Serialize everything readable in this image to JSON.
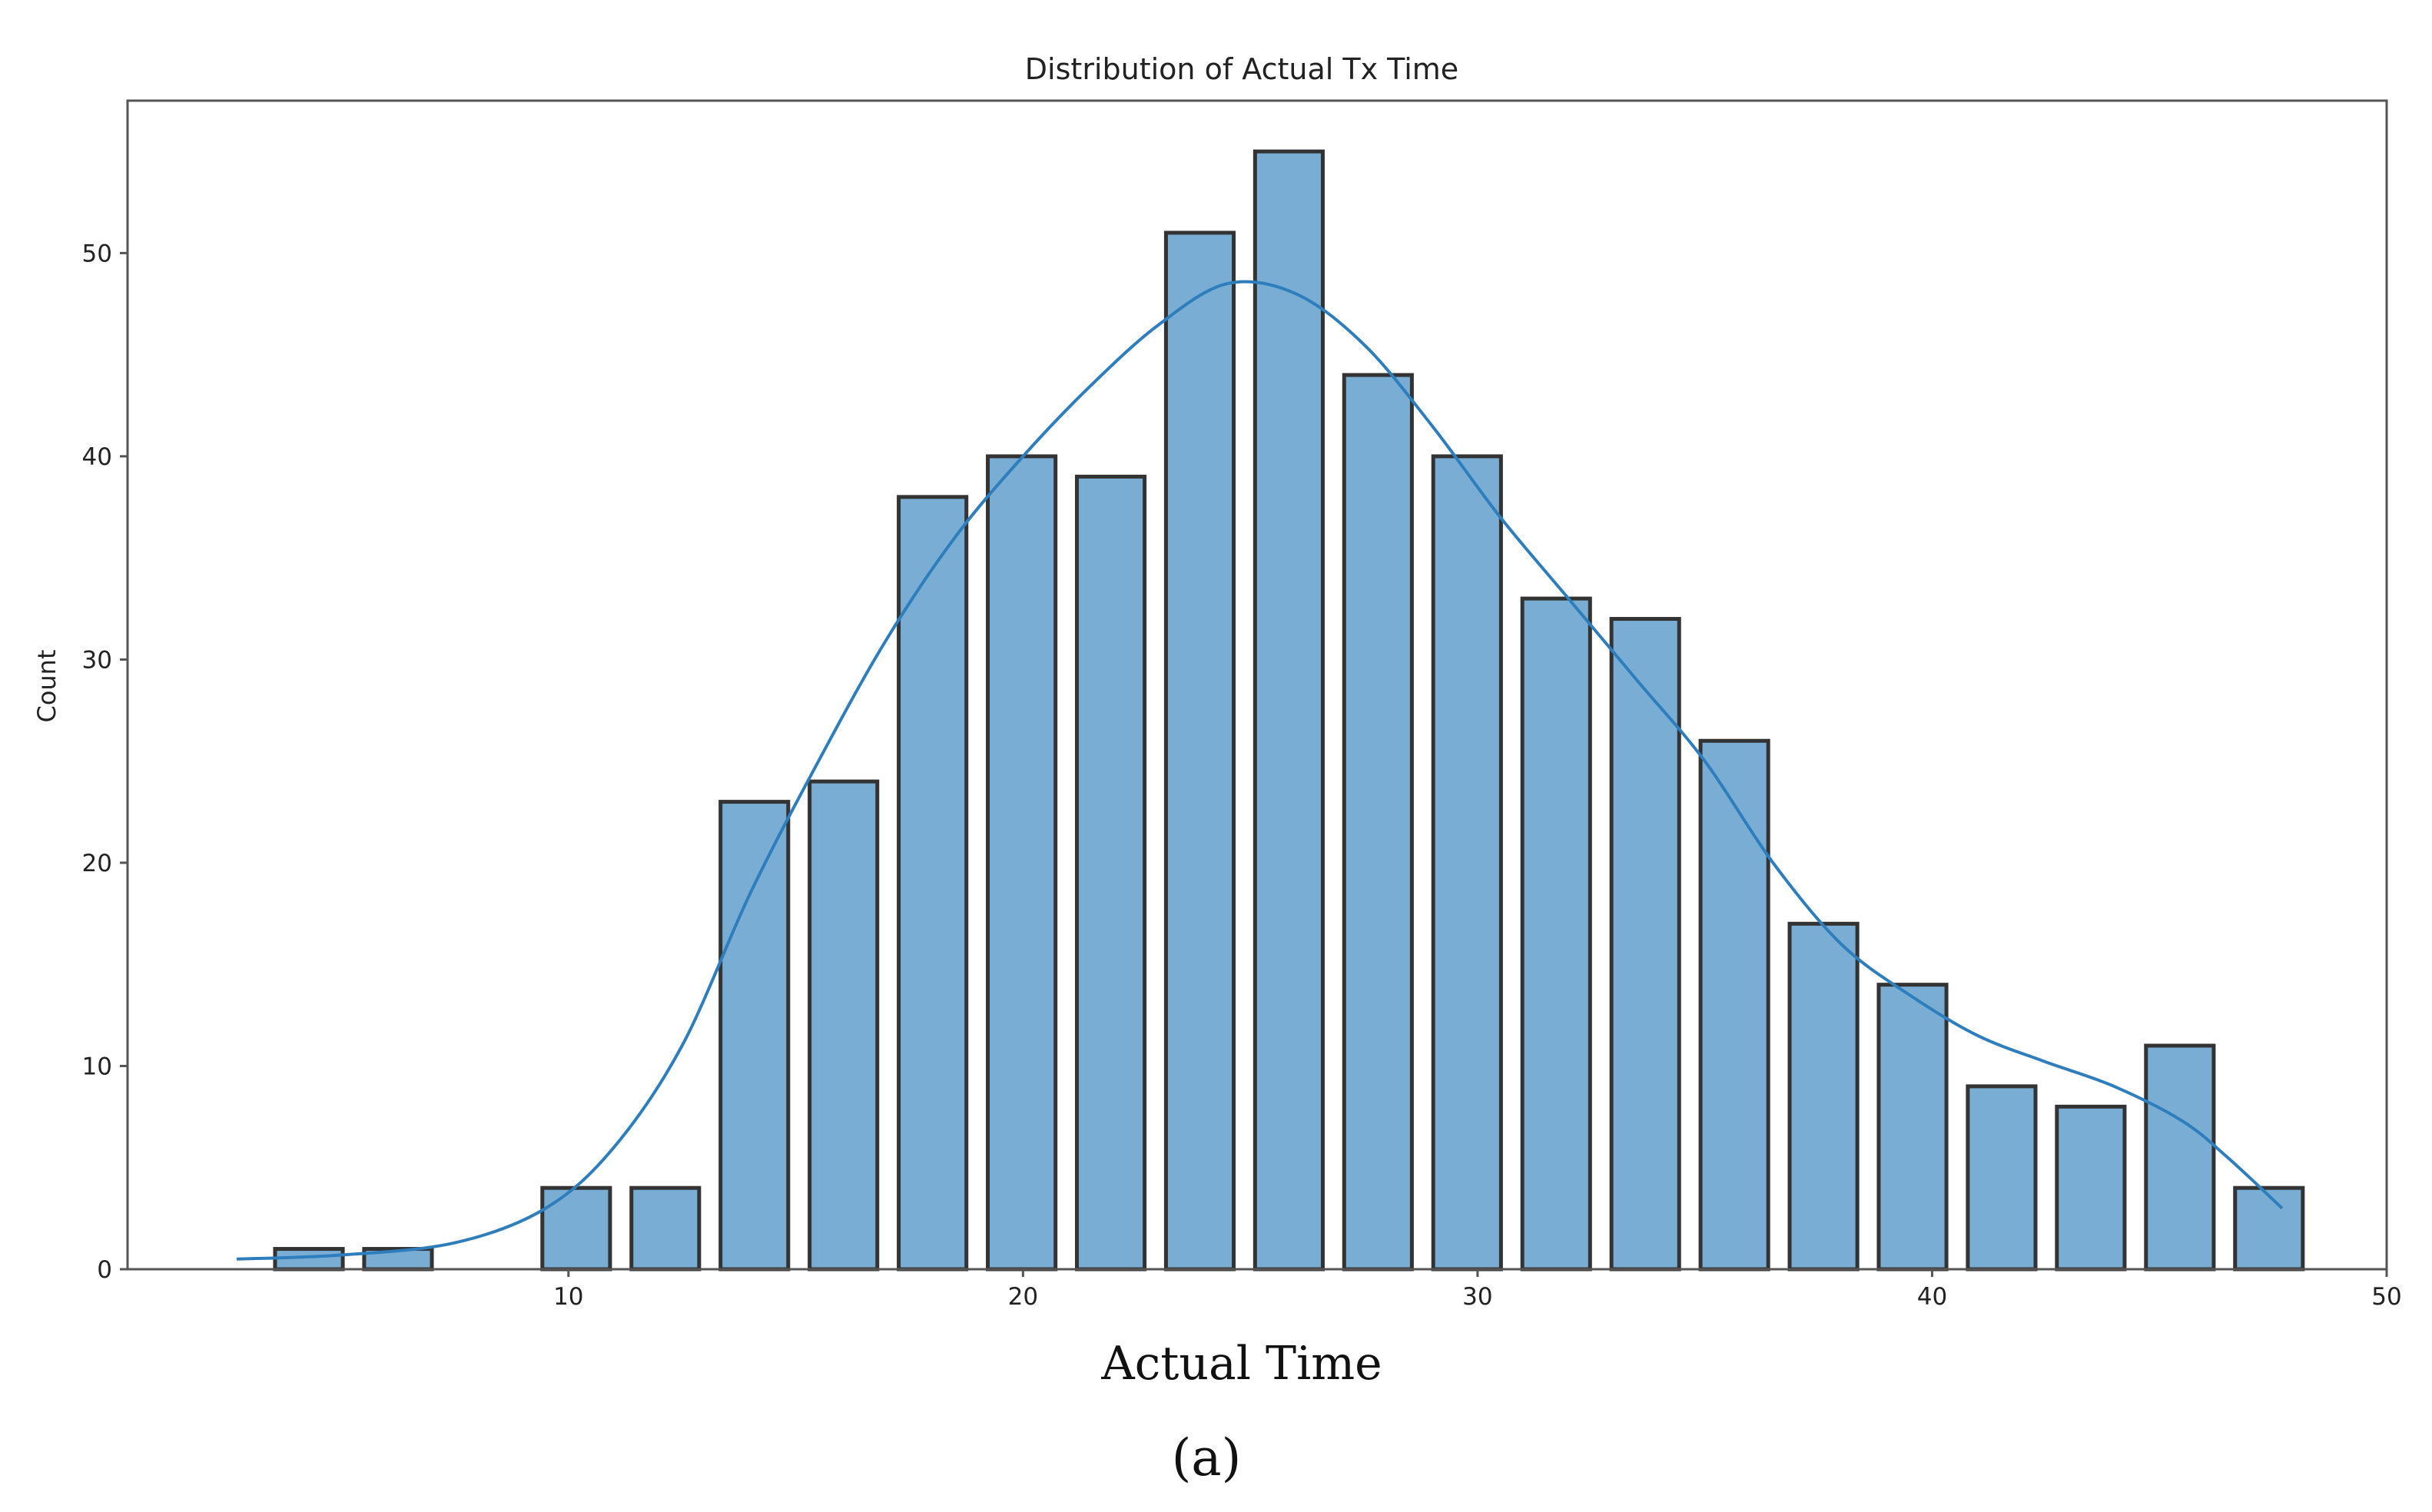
{
  "chart_data": {
    "type": "bar",
    "title": "Distribution of Actual Tx Time",
    "xlabel": "Actual Time",
    "ylabel": "Count",
    "panel_label": "(a)",
    "xlim": [
      0.3,
      50
    ],
    "ylim": [
      0,
      57.5
    ],
    "xticks": [
      10,
      20,
      30,
      40,
      50
    ],
    "yticks": [
      0,
      10,
      20,
      30,
      40,
      50
    ],
    "bin_width": 1.96,
    "bar_color": "#79add3",
    "edge_color": "#333333",
    "kde_color": "#2e7ebd",
    "bars": [
      {
        "x": 4.29,
        "count": 1
      },
      {
        "x": 6.25,
        "count": 1
      },
      {
        "x": 8.21,
        "count": 0
      },
      {
        "x": 10.17,
        "count": 4
      },
      {
        "x": 12.13,
        "count": 4
      },
      {
        "x": 14.09,
        "count": 23
      },
      {
        "x": 16.05,
        "count": 24
      },
      {
        "x": 18.01,
        "count": 38
      },
      {
        "x": 19.97,
        "count": 40
      },
      {
        "x": 21.93,
        "count": 39
      },
      {
        "x": 23.89,
        "count": 51
      },
      {
        "x": 25.85,
        "count": 55
      },
      {
        "x": 27.81,
        "count": 44
      },
      {
        "x": 29.77,
        "count": 40
      },
      {
        "x": 31.73,
        "count": 33
      },
      {
        "x": 33.69,
        "count": 32
      },
      {
        "x": 35.65,
        "count": 26
      },
      {
        "x": 37.61,
        "count": 17
      },
      {
        "x": 39.57,
        "count": 14
      },
      {
        "x": 41.53,
        "count": 9
      },
      {
        "x": 43.49,
        "count": 8
      },
      {
        "x": 45.45,
        "count": 11
      },
      {
        "x": 47.41,
        "count": 4
      }
    ],
    "kde": [
      {
        "x": 2.7,
        "y": 0.5
      },
      {
        "x": 5.0,
        "y": 0.7
      },
      {
        "x": 7.5,
        "y": 1.3
      },
      {
        "x": 9.5,
        "y": 3.0
      },
      {
        "x": 11.0,
        "y": 6.0
      },
      {
        "x": 12.5,
        "y": 11.0
      },
      {
        "x": 14.0,
        "y": 18.5
      },
      {
        "x": 15.5,
        "y": 25.0
      },
      {
        "x": 17.0,
        "y": 31.0
      },
      {
        "x": 18.5,
        "y": 36.0
      },
      {
        "x": 20.0,
        "y": 40.0
      },
      {
        "x": 21.5,
        "y": 43.5
      },
      {
        "x": 23.0,
        "y": 46.5
      },
      {
        "x": 24.5,
        "y": 48.5
      },
      {
        "x": 26.0,
        "y": 48.0
      },
      {
        "x": 27.5,
        "y": 45.5
      },
      {
        "x": 29.0,
        "y": 41.5
      },
      {
        "x": 30.5,
        "y": 37.0
      },
      {
        "x": 32.0,
        "y": 33.0
      },
      {
        "x": 33.5,
        "y": 29.0
      },
      {
        "x": 35.0,
        "y": 25.0
      },
      {
        "x": 36.5,
        "y": 20.0
      },
      {
        "x": 38.0,
        "y": 16.0
      },
      {
        "x": 39.5,
        "y": 13.5
      },
      {
        "x": 41.0,
        "y": 11.5
      },
      {
        "x": 42.5,
        "y": 10.2
      },
      {
        "x": 44.0,
        "y": 9.0
      },
      {
        "x": 45.5,
        "y": 7.3
      },
      {
        "x": 46.5,
        "y": 5.5
      },
      {
        "x": 47.7,
        "y": 3.0
      }
    ]
  }
}
